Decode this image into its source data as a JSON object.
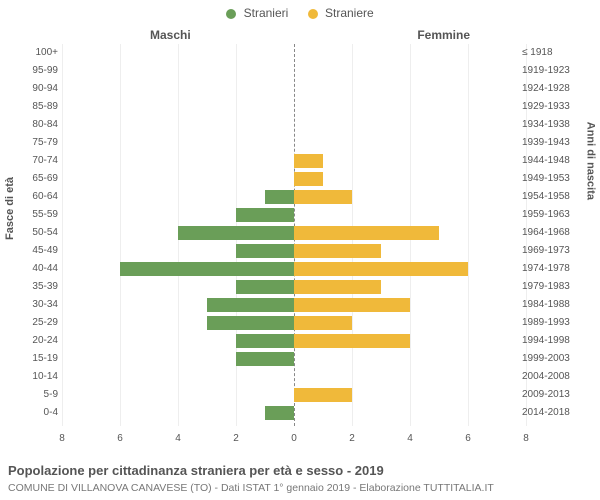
{
  "legend": {
    "male": {
      "label": "Stranieri",
      "color": "#6a9e58"
    },
    "female": {
      "label": "Straniere",
      "color": "#f0b93a"
    }
  },
  "headers": {
    "left": "Maschi",
    "right": "Femmine"
  },
  "axis_titles": {
    "left": "Fasce di età",
    "right": "Anni di nascita"
  },
  "chart": {
    "type": "population-pyramid",
    "xlim": 8,
    "x_ticks": [
      8,
      6,
      4,
      2,
      0,
      2,
      4,
      6,
      8
    ],
    "grid_color": "#eeeeee",
    "center_dash_color": "#888888",
    "background": "#ffffff",
    "label_fontsize": 10,
    "rows": [
      {
        "age": "100+",
        "year": "≤ 1918",
        "m": 0,
        "f": 0
      },
      {
        "age": "95-99",
        "year": "1919-1923",
        "m": 0,
        "f": 0
      },
      {
        "age": "90-94",
        "year": "1924-1928",
        "m": 0,
        "f": 0
      },
      {
        "age": "85-89",
        "year": "1929-1933",
        "m": 0,
        "f": 0
      },
      {
        "age": "80-84",
        "year": "1934-1938",
        "m": 0,
        "f": 0
      },
      {
        "age": "75-79",
        "year": "1939-1943",
        "m": 0,
        "f": 0
      },
      {
        "age": "70-74",
        "year": "1944-1948",
        "m": 0,
        "f": 1
      },
      {
        "age": "65-69",
        "year": "1949-1953",
        "m": 0,
        "f": 1
      },
      {
        "age": "60-64",
        "year": "1954-1958",
        "m": 1,
        "f": 2
      },
      {
        "age": "55-59",
        "year": "1959-1963",
        "m": 2,
        "f": 0
      },
      {
        "age": "50-54",
        "year": "1964-1968",
        "m": 4,
        "f": 5
      },
      {
        "age": "45-49",
        "year": "1969-1973",
        "m": 2,
        "f": 3
      },
      {
        "age": "40-44",
        "year": "1974-1978",
        "m": 6,
        "f": 6
      },
      {
        "age": "35-39",
        "year": "1979-1983",
        "m": 2,
        "f": 3
      },
      {
        "age": "30-34",
        "year": "1984-1988",
        "m": 3,
        "f": 4
      },
      {
        "age": "25-29",
        "year": "1989-1993",
        "m": 3,
        "f": 2
      },
      {
        "age": "20-24",
        "year": "1994-1998",
        "m": 2,
        "f": 4
      },
      {
        "age": "15-19",
        "year": "1999-2003",
        "m": 2,
        "f": 0
      },
      {
        "age": "10-14",
        "year": "2004-2008",
        "m": 0,
        "f": 0
      },
      {
        "age": "5-9",
        "year": "2009-2013",
        "m": 0,
        "f": 2
      },
      {
        "age": "0-4",
        "year": "2014-2018",
        "m": 1,
        "f": 0
      }
    ]
  },
  "footer": {
    "title": "Popolazione per cittadinanza straniera per età e sesso - 2019",
    "subtitle": "COMUNE DI VILLANOVA CANAVESE (TO) - Dati ISTAT 1° gennaio 2019 - Elaborazione TUTTITALIA.IT"
  }
}
